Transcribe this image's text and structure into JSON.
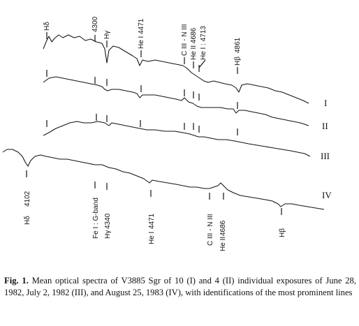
{
  "figure": {
    "spectrum_labels": [
      "I",
      "II",
      "III",
      "IV"
    ],
    "top_line_ids": [
      "Hδ",
      "4300",
      "Hγ",
      "He I 4471",
      "C III - N III",
      "He II 4686",
      "He I : 4713",
      "Hβ",
      "4861"
    ],
    "bottom_line_ids": [
      "Hδ",
      "4102",
      "Fe I : G-band",
      "Hγ",
      "4340",
      "He I",
      "4471",
      "C III - N III",
      "He II",
      "4686",
      "Hβ"
    ]
  },
  "caption": {
    "label": "Fig. 1.",
    "text": " Mean optical spectra of V3885 Sgr of 10 (I) and 4 (II) individual exposures of June 28, 1982, July 2, 1982 (III), and August 25, 1983 (IV), with identifications of the most prominent lines"
  }
}
